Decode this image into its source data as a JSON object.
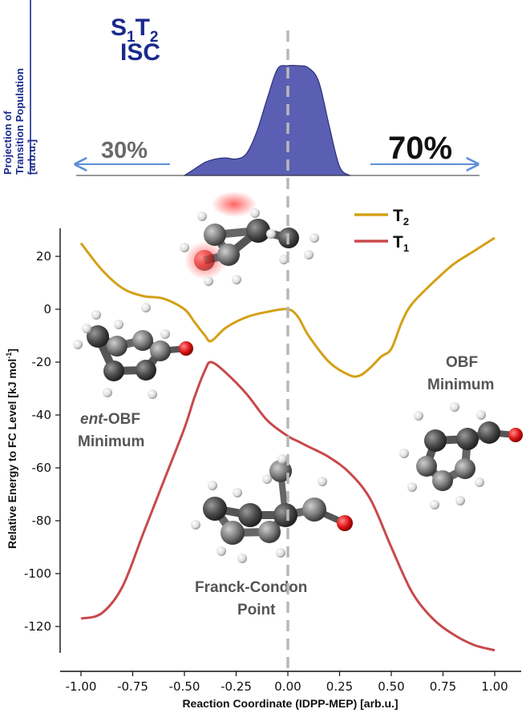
{
  "chart_data": [
    {
      "type": "area",
      "ylabel_lines": [
        "Projection of",
        "Transition Population",
        "[arb.u.]"
      ],
      "title_main": "S",
      "title_sub1": "1",
      "title_mid": "T",
      "title_sub2": "2",
      "title_line2": "ISC",
      "left_percent": "30%",
      "right_percent": "70%",
      "x": [
        -0.5,
        -0.45,
        -0.4,
        -0.35,
        -0.3,
        -0.25,
        -0.2,
        -0.15,
        -0.1,
        -0.05,
        0.0,
        0.05,
        0.1,
        0.15,
        0.2,
        0.25,
        0.3
      ],
      "values": [
        0.0,
        0.06,
        0.12,
        0.15,
        0.16,
        0.15,
        0.2,
        0.4,
        0.7,
        0.97,
        1.0,
        1.0,
        0.98,
        0.85,
        0.45,
        0.08,
        0.0
      ],
      "colors": {
        "fill": "#5a5fb4",
        "stroke": "#2b2f7a",
        "arrow": "#5b8fd6",
        "title": "#1a2a8c"
      }
    },
    {
      "type": "line",
      "xlabel": "Reaction Coordinate (IDPP-MEP) [arb.u.]",
      "ylabel": "Relative Energy to FC Level [kJ mol",
      "ylabel_sup": "-1",
      "ylabel_end": "]",
      "xlim": [
        -1.1,
        1.1
      ],
      "ylim": [
        -130,
        30
      ],
      "xticks": [
        "-1.00",
        "-0.75",
        "-0.50",
        "-0.25",
        "0.00",
        "0.25",
        "0.50",
        "0.75",
        "1.00"
      ],
      "yticks": [
        "20",
        "0",
        "-20",
        "-40",
        "-60",
        "-80",
        "-100",
        "-120"
      ],
      "legend_position": "top-right",
      "series": [
        {
          "name": "T",
          "name_sub": "2",
          "color": "#d4a017",
          "x": [
            -1.0,
            -0.9,
            -0.8,
            -0.7,
            -0.6,
            -0.5,
            -0.45,
            -0.4,
            -0.37,
            -0.3,
            -0.2,
            -0.1,
            0.0,
            0.05,
            0.1,
            0.2,
            0.3,
            0.35,
            0.4,
            0.45,
            0.5,
            0.55,
            0.6,
            0.7,
            0.8,
            0.9,
            1.0
          ],
          "values": [
            25,
            15,
            8,
            5,
            4,
            0,
            -5,
            -10,
            -12,
            -7,
            -3,
            -1,
            0,
            -3,
            -10,
            -20,
            -25,
            -25,
            -22,
            -18,
            -15,
            -5,
            2,
            10,
            17,
            22,
            27
          ]
        },
        {
          "name": "T",
          "name_sub": "1",
          "color": "#c8494c",
          "x": [
            -1.0,
            -0.9,
            -0.8,
            -0.7,
            -0.6,
            -0.5,
            -0.45,
            -0.4,
            -0.37,
            -0.3,
            -0.2,
            -0.1,
            0.0,
            0.05,
            0.1,
            0.2,
            0.3,
            0.4,
            0.5,
            0.6,
            0.7,
            0.8,
            0.9,
            1.0
          ],
          "values": [
            -117,
            -115,
            -105,
            -85,
            -65,
            -45,
            -33,
            -23,
            -20,
            -24,
            -32,
            -42,
            -48,
            -50,
            -52,
            -56,
            -62,
            -72,
            -90,
            -107,
            -117,
            -123,
            -127,
            -129
          ]
        }
      ],
      "annotations": {
        "ent": "ent",
        "ent_rest": "-OBF",
        "ent_line2": "Minimum",
        "obf_line1": "OBF",
        "obf_line2": "Minimum",
        "fc_line1": "Franck-Condon",
        "fc_line2": "Point"
      }
    }
  ]
}
